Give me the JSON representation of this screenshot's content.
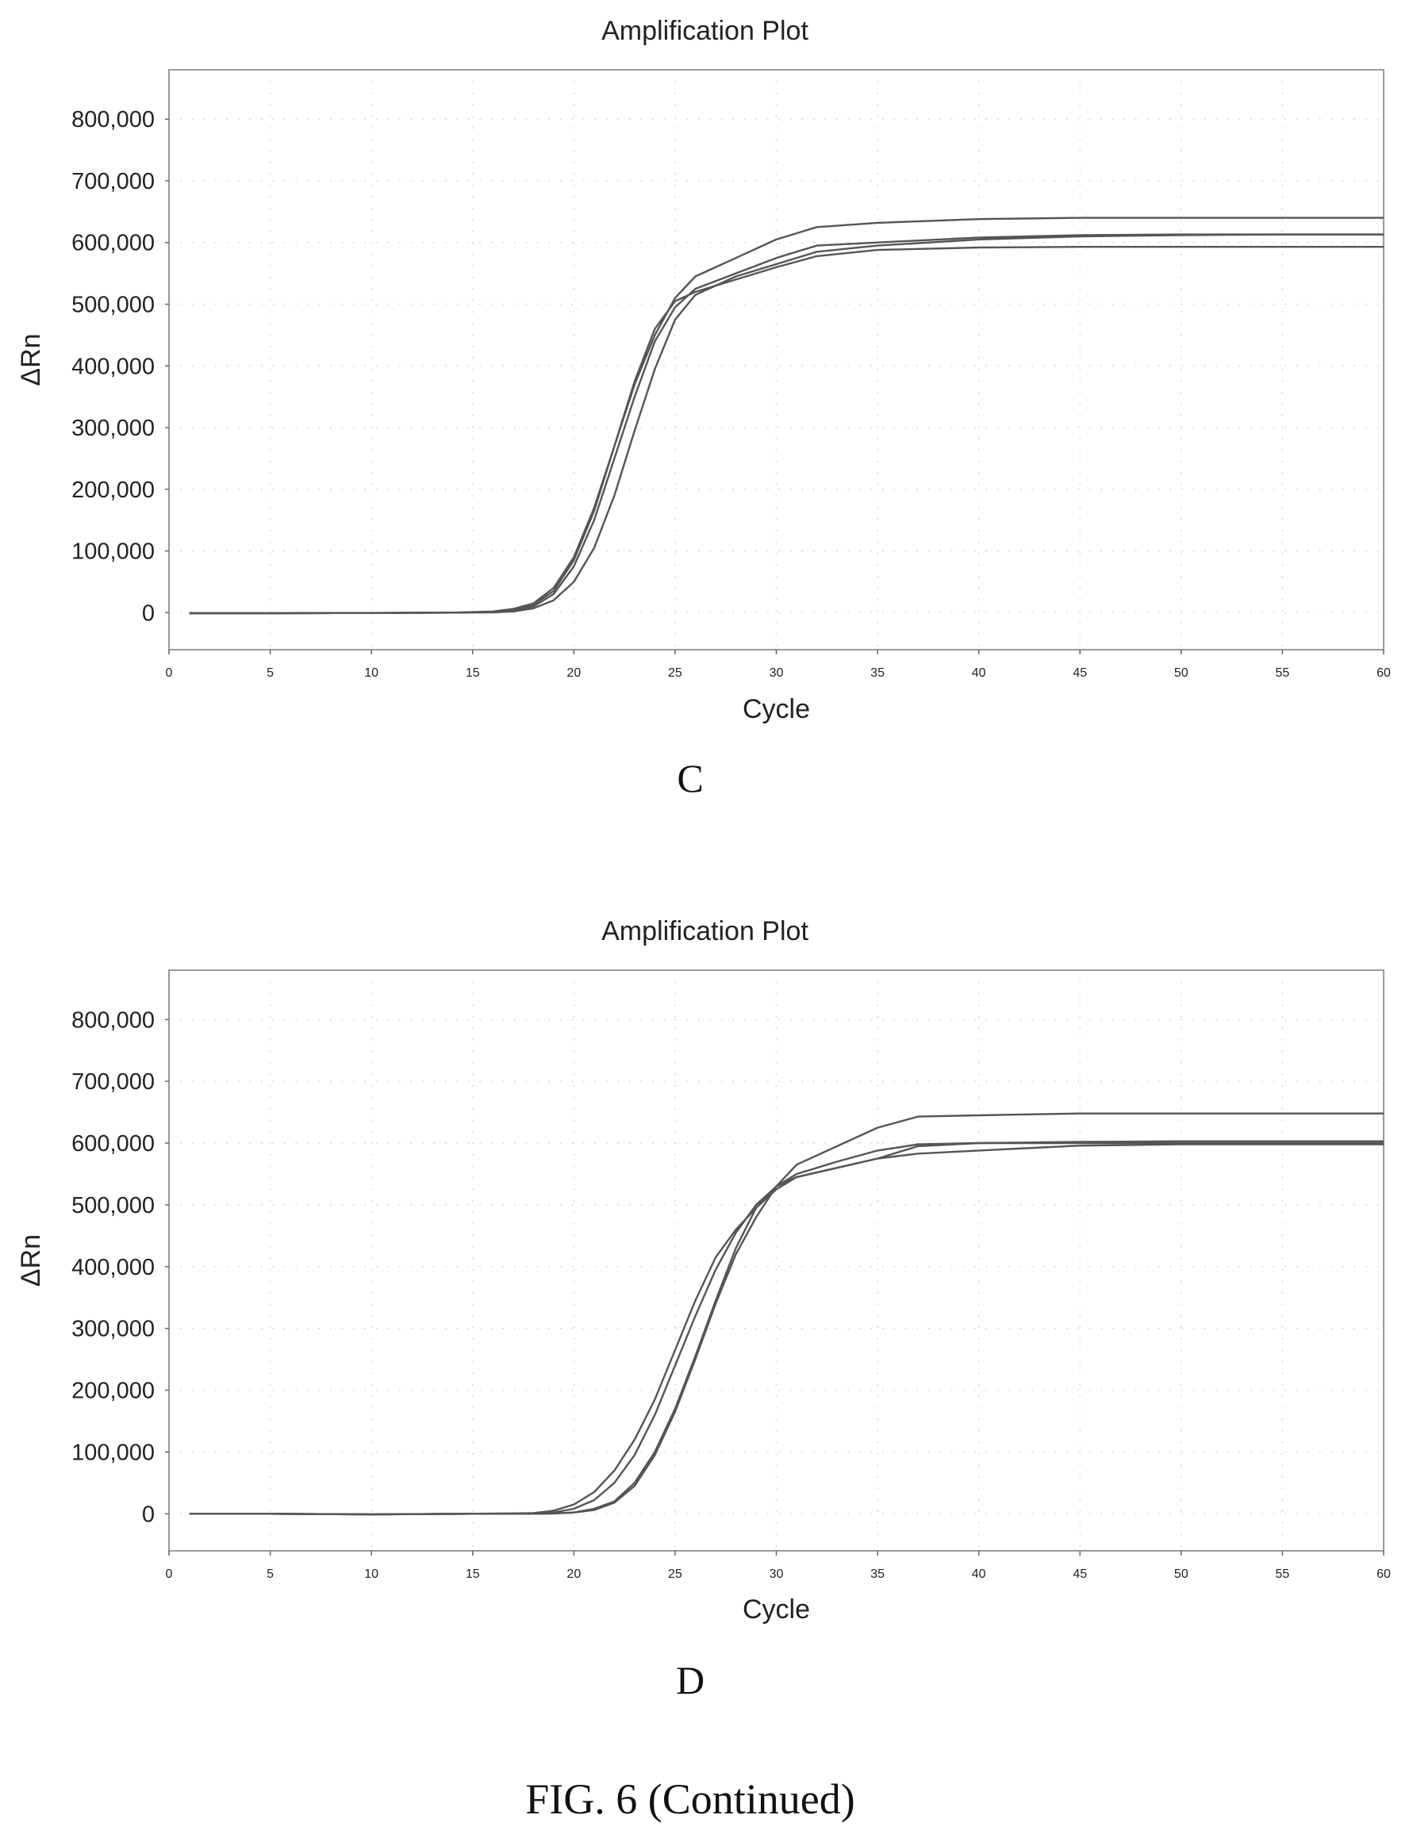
{
  "chart_data": [
    {
      "type": "line",
      "title": "Amplification Plot",
      "xlabel": "Cycle",
      "ylabel": "ΔRn",
      "xlim": [
        0,
        60
      ],
      "ylim": [
        -60000,
        880000
      ],
      "x_ticks": [
        "0",
        "5",
        "10",
        "15",
        "20",
        "25",
        "30",
        "35",
        "40",
        "45",
        "50",
        "55",
        "60"
      ],
      "y_ticks": [
        "800,000",
        "700,000",
        "600,000",
        "500,000",
        "400,000",
        "300,000",
        "200,000",
        "100,000",
        "0"
      ],
      "grid": true,
      "panel_label": "C",
      "x": [
        1,
        5,
        10,
        14,
        16,
        17,
        18,
        19,
        20,
        21,
        22,
        23,
        24,
        25,
        26,
        28,
        30,
        32,
        35,
        40,
        45,
        50,
        55,
        60
      ],
      "series": [
        {
          "values": [
            -1000,
            -1000,
            -500,
            0,
            2000,
            6000,
            15000,
            40000,
            90000,
            170000,
            270000,
            370000,
            450000,
            510000,
            545000,
            575000,
            605000,
            625000,
            632000,
            638000,
            640000,
            640000,
            640000,
            640000
          ]
        },
        {
          "values": [
            -1000,
            -1000,
            -500,
            0,
            1000,
            4000,
            10000,
            30000,
            75000,
            150000,
            250000,
            350000,
            440000,
            495000,
            525000,
            550000,
            575000,
            595000,
            600000,
            608000,
            612000,
            613000,
            613000,
            613000
          ]
        },
        {
          "values": [
            -1000,
            -1000,
            -500,
            0,
            1500,
            5000,
            13000,
            35000,
            85000,
            165000,
            270000,
            375000,
            460000,
            505000,
            520000,
            540000,
            560000,
            578000,
            588000,
            592000,
            593000,
            593000,
            593000,
            593000
          ]
        },
        {
          "values": [
            -1000,
            -1000,
            -500,
            0,
            500,
            2000,
            7000,
            20000,
            50000,
            105000,
            190000,
            295000,
            395000,
            475000,
            515000,
            545000,
            565000,
            585000,
            595000,
            605000,
            610000,
            612000,
            613000,
            613000
          ]
        }
      ]
    },
    {
      "type": "line",
      "title": "Amplification Plot",
      "xlabel": "Cycle",
      "ylabel": "ΔRn",
      "xlim": [
        0,
        60
      ],
      "ylim": [
        -60000,
        880000
      ],
      "x_ticks": [
        "0",
        "5",
        "10",
        "15",
        "20",
        "25",
        "30",
        "35",
        "40",
        "45",
        "50",
        "55",
        "60"
      ],
      "y_ticks": [
        "800,000",
        "700,000",
        "600,000",
        "500,000",
        "400,000",
        "300,000",
        "200,000",
        "100,000",
        "0"
      ],
      "grid": true,
      "panel_label": "D",
      "x": [
        1,
        5,
        10,
        15,
        18,
        19,
        20,
        21,
        22,
        23,
        24,
        25,
        26,
        27,
        28,
        29,
        30,
        31,
        33,
        35,
        37,
        40,
        45,
        50,
        55,
        60
      ],
      "series": [
        {
          "values": [
            0,
            0,
            -1000,
            0,
            1000,
            5000,
            15000,
            35000,
            70000,
            120000,
            185000,
            265000,
            345000,
            415000,
            460000,
            495000,
            525000,
            545000,
            560000,
            575000,
            595000,
            600000,
            600000,
            600000,
            600000,
            600000
          ]
        },
        {
          "values": [
            0,
            0,
            -1000,
            0,
            0,
            2000,
            8000,
            22000,
            50000,
            95000,
            160000,
            240000,
            320000,
            395000,
            455000,
            500000,
            530000,
            550000,
            570000,
            588000,
            598000,
            600000,
            602000,
            603000,
            603000,
            603000
          ]
        },
        {
          "values": [
            0,
            0,
            -1000,
            0,
            0,
            500,
            2000,
            6000,
            18000,
            45000,
            95000,
            165000,
            250000,
            340000,
            420000,
            480000,
            530000,
            565000,
            595000,
            625000,
            643000,
            645000,
            648000,
            648000,
            648000,
            648000
          ]
        },
        {
          "values": [
            0,
            0,
            -1000,
            0,
            0,
            500,
            2000,
            8000,
            20000,
            50000,
            100000,
            170000,
            255000,
            345000,
            430000,
            495000,
            530000,
            545000,
            560000,
            575000,
            583000,
            588000,
            596000,
            598000,
            598000,
            598000
          ]
        }
      ]
    }
  ],
  "figure_caption": "FIG. 6 (Continued)"
}
